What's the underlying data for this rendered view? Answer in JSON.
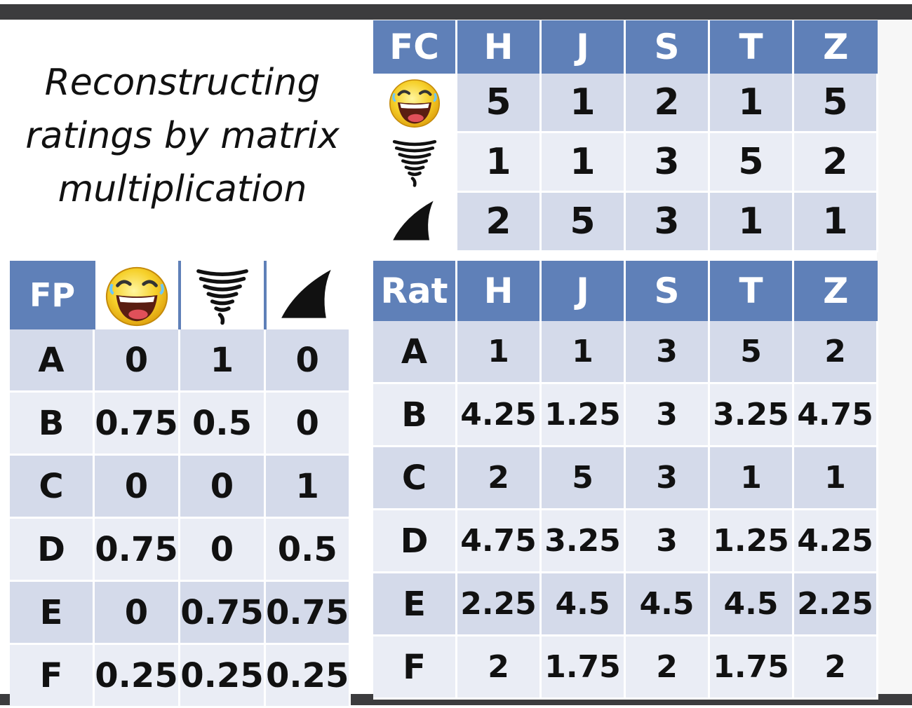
{
  "title": "Reconstructing ratings by matrix multiplication",
  "title_lines": [
    "Reconstructing",
    "ratings by matrix",
    "multiplication"
  ],
  "fc_table": {
    "corner": "FC",
    "columns": [
      "H",
      "J",
      "S",
      "T",
      "Z"
    ],
    "rows": [
      {
        "icon": "laughing-face-icon",
        "values": [
          "5",
          "1",
          "2",
          "1",
          "5"
        ]
      },
      {
        "icon": "tornado-icon",
        "values": [
          "1",
          "1",
          "3",
          "5",
          "2"
        ]
      },
      {
        "icon": "shark-fin-icon",
        "values": [
          "2",
          "5",
          "3",
          "1",
          "1"
        ]
      }
    ]
  },
  "fp_table": {
    "corner": "FP",
    "column_icons": [
      "laughing-face-icon",
      "tornado-icon",
      "shark-fin-icon"
    ],
    "rows": [
      {
        "label": "A",
        "values": [
          "0",
          "1",
          "0"
        ]
      },
      {
        "label": "B",
        "values": [
          "0.75",
          "0.5",
          "0"
        ]
      },
      {
        "label": "C",
        "values": [
          "0",
          "0",
          "1"
        ]
      },
      {
        "label": "D",
        "values": [
          "0.75",
          "0",
          "0.5"
        ]
      },
      {
        "label": "E",
        "values": [
          "0",
          "0.75",
          "0.75"
        ]
      },
      {
        "label": "F",
        "values": [
          "0.25",
          "0.25",
          "0.25"
        ]
      }
    ]
  },
  "rat_table": {
    "corner": "Rat",
    "columns": [
      "H",
      "J",
      "S",
      "T",
      "Z"
    ],
    "rows": [
      {
        "label": "A",
        "values": [
          "1",
          "1",
          "3",
          "5",
          "2"
        ]
      },
      {
        "label": "B",
        "values": [
          "4.25",
          "1.25",
          "3",
          "3.25",
          "4.75"
        ]
      },
      {
        "label": "C",
        "values": [
          "2",
          "5",
          "3",
          "1",
          "1"
        ]
      },
      {
        "label": "D",
        "values": [
          "4.75",
          "3.25",
          "3",
          "1.25",
          "4.25"
        ]
      },
      {
        "label": "E",
        "values": [
          "2.25",
          "4.5",
          "4.5",
          "4.5",
          "2.25"
        ]
      },
      {
        "label": "F",
        "values": [
          "2",
          "1.75",
          "2",
          "1.75",
          "2"
        ]
      }
    ]
  },
  "colors": {
    "header_blue": "#5f80b8",
    "row_dark": "#d4daea",
    "row_light": "#eaedf5",
    "frame": "#3c3c3e"
  }
}
